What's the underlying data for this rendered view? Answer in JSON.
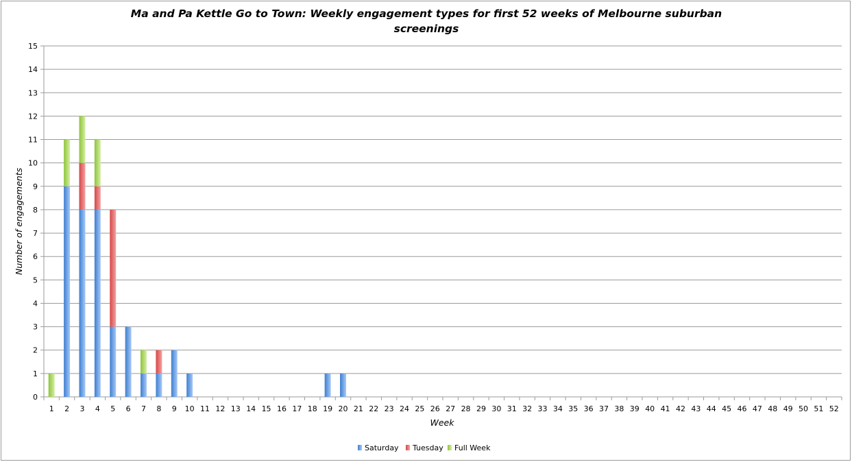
{
  "chart_data": {
    "type": "bar",
    "stacked": true,
    "title_lines": [
      "Ma and Pa Kettle Go to Town: Weekly engagement types for first 52 weeks of Melbourne suburban",
      "screenings"
    ],
    "xlabel": "Week",
    "ylabel": "Number of engagements",
    "ylim": [
      0,
      15
    ],
    "y_ticks": [
      "0",
      "1",
      "2",
      "3",
      "4",
      "5",
      "6",
      "7",
      "8",
      "9",
      "10",
      "11",
      "12",
      "13",
      "14",
      "15"
    ],
    "categories": [
      "1",
      "2",
      "3",
      "4",
      "5",
      "6",
      "7",
      "8",
      "9",
      "10",
      "11",
      "12",
      "13",
      "14",
      "15",
      "16",
      "17",
      "18",
      "19",
      "20",
      "21",
      "22",
      "23",
      "24",
      "25",
      "26",
      "27",
      "28",
      "29",
      "30",
      "31",
      "32",
      "33",
      "34",
      "35",
      "36",
      "37",
      "38",
      "39",
      "40",
      "41",
      "42",
      "43",
      "44",
      "45",
      "46",
      "47",
      "48",
      "49",
      "50",
      "51",
      "52"
    ],
    "series": [
      {
        "name": "Saturday",
        "color_dark": "#3f7fd0",
        "color_light": "#a6c8f7",
        "values": [
          0,
          9,
          8,
          8,
          3,
          3,
          1,
          1,
          2,
          1,
          0,
          0,
          0,
          0,
          0,
          0,
          0,
          0,
          1,
          1,
          0,
          0,
          0,
          0,
          0,
          0,
          0,
          0,
          0,
          0,
          0,
          0,
          0,
          0,
          0,
          0,
          0,
          0,
          0,
          0,
          0,
          0,
          0,
          0,
          0,
          0,
          0,
          0,
          0,
          0,
          0,
          0
        ]
      },
      {
        "name": "Tuesday",
        "color_dark": "#d64848",
        "color_light": "#f3a2a2",
        "values": [
          0,
          0,
          2,
          1,
          5,
          0,
          0,
          1,
          0,
          0,
          0,
          0,
          0,
          0,
          0,
          0,
          0,
          0,
          0,
          0,
          0,
          0,
          0,
          0,
          0,
          0,
          0,
          0,
          0,
          0,
          0,
          0,
          0,
          0,
          0,
          0,
          0,
          0,
          0,
          0,
          0,
          0,
          0,
          0,
          0,
          0,
          0,
          0,
          0,
          0,
          0,
          0
        ]
      },
      {
        "name": "Full Week",
        "color_dark": "#8ec43c",
        "color_light": "#d4eea2",
        "values": [
          1,
          2,
          2,
          2,
          0,
          0,
          1,
          0,
          0,
          0,
          0,
          0,
          0,
          0,
          0,
          0,
          0,
          0,
          0,
          0,
          0,
          0,
          0,
          0,
          0,
          0,
          0,
          0,
          0,
          0,
          0,
          0,
          0,
          0,
          0,
          0,
          0,
          0,
          0,
          0,
          0,
          0,
          0,
          0,
          0,
          0,
          0,
          0,
          0,
          0,
          0,
          0
        ]
      }
    ],
    "grid": true,
    "legend_position": "bottom",
    "gridline_color": "#9a9a9a"
  }
}
